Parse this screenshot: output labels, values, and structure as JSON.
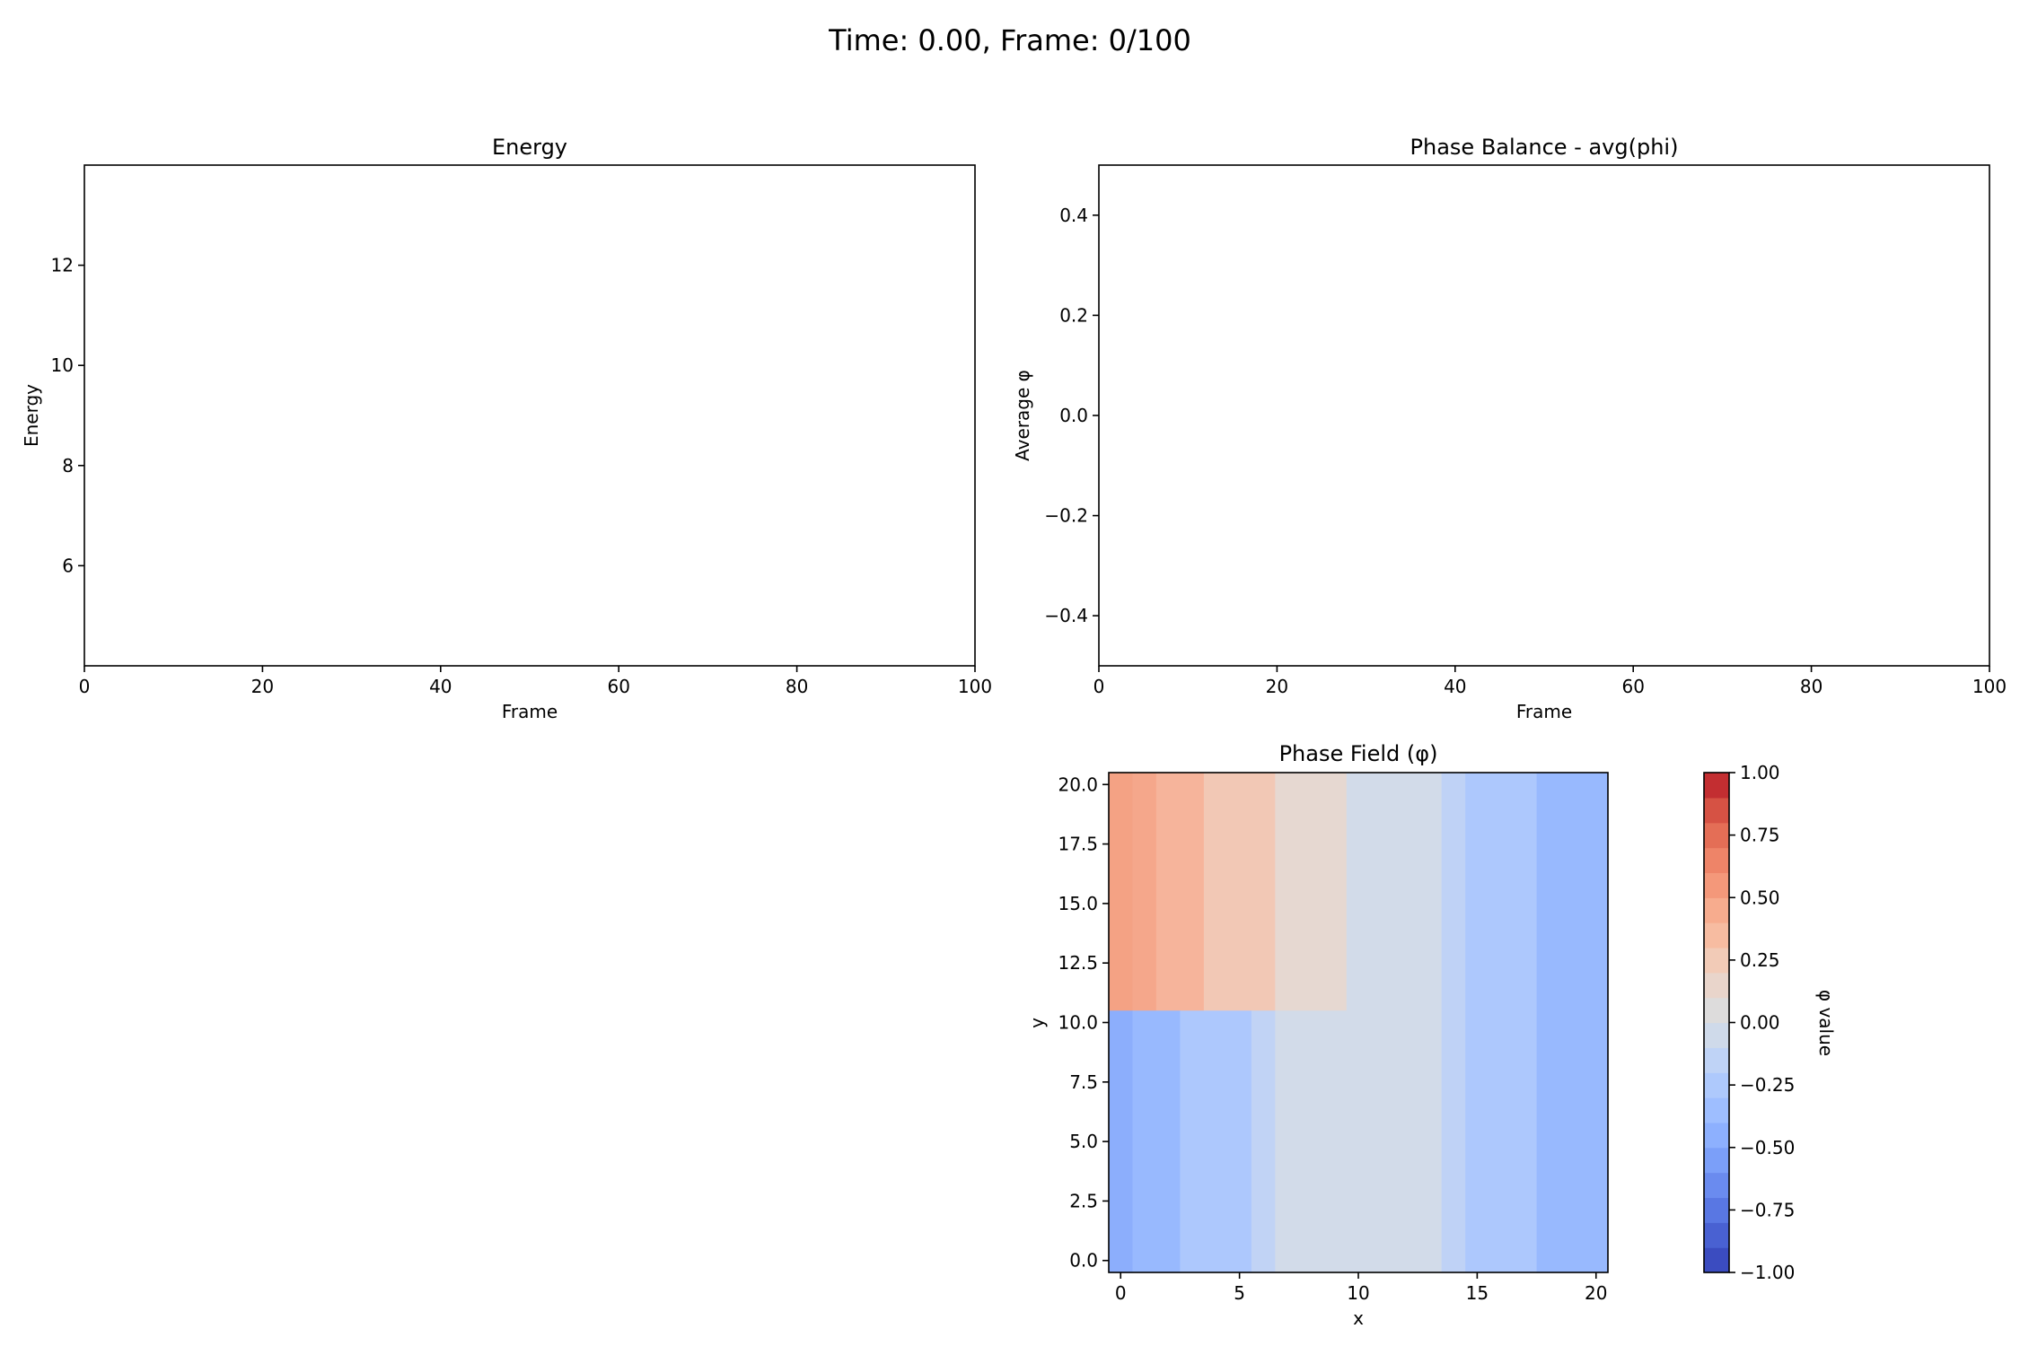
{
  "figure": {
    "suptitle": "Time: 0.00, Frame: 0/100"
  },
  "chart_data": [
    {
      "type": "line",
      "title": "Energy",
      "xlabel": "Frame",
      "ylabel": "Energy",
      "xlim": [
        0,
        100
      ],
      "ylim": [
        4.0,
        14.0
      ],
      "xticks": [
        0,
        20,
        40,
        60,
        80,
        100
      ],
      "xtick_labels": [
        "0",
        "20",
        "40",
        "60",
        "80",
        "100"
      ],
      "yticks": [
        6,
        8,
        10,
        12
      ],
      "ytick_labels": [
        "6",
        "8",
        "10",
        "12"
      ],
      "grid": false,
      "series": []
    },
    {
      "type": "line",
      "title": "Phase Balance - avg(phi)",
      "xlabel": "Frame",
      "ylabel": "Average φ",
      "xlim": [
        0,
        100
      ],
      "ylim": [
        -0.5,
        0.5
      ],
      "xticks": [
        0,
        20,
        40,
        60,
        80,
        100
      ],
      "xtick_labels": [
        "0",
        "20",
        "40",
        "60",
        "80",
        "100"
      ],
      "yticks": [
        -0.4,
        -0.2,
        0.0,
        0.2,
        0.4
      ],
      "ytick_labels": [
        "−0.4",
        "−0.2",
        "0.0",
        "0.2",
        "0.4"
      ],
      "grid": false,
      "series": []
    },
    {
      "type": "heatmap",
      "title": "Phase Field (φ)",
      "xlabel": "x",
      "ylabel": "y",
      "xlim": [
        -0.5,
        20.5
      ],
      "ylim": [
        -0.5,
        20.5
      ],
      "xticks": [
        0,
        5,
        10,
        15,
        20
      ],
      "xtick_labels": [
        "0",
        "5",
        "10",
        "15",
        "20"
      ],
      "yticks": [
        0.0,
        2.5,
        5.0,
        7.5,
        10.0,
        12.5,
        15.0,
        17.5,
        20.0
      ],
      "ytick_labels": [
        "0.0",
        "2.5",
        "5.0",
        "7.5",
        "10.0",
        "12.5",
        "15.0",
        "17.5",
        "20.0"
      ],
      "colormap": "coolwarm",
      "vmin": -1.0,
      "vmax": 1.0,
      "regions": [
        {
          "x": [
            -0.5,
            0.5
          ],
          "y": [
            10.5,
            20.5
          ],
          "value": 0.5,
          "color": "#f4a284"
        },
        {
          "x": [
            0.5,
            1.5
          ],
          "y": [
            10.5,
            20.5
          ],
          "value": 0.45,
          "color": "#f5a78b"
        },
        {
          "x": [
            1.5,
            3.5
          ],
          "y": [
            10.5,
            20.5
          ],
          "value": 0.4,
          "color": "#f6b49b"
        },
        {
          "x": [
            3.5,
            6.5
          ],
          "y": [
            10.5,
            20.5
          ],
          "value": 0.25,
          "color": "#f2c8b5"
        },
        {
          "x": [
            6.5,
            9.5
          ],
          "y": [
            10.5,
            20.5
          ],
          "value": 0.1,
          "color": "#e6d8d1"
        },
        {
          "x": [
            9.5,
            13.5
          ],
          "y": [
            10.5,
            20.5
          ],
          "value": -0.1,
          "color": "#d2dbe9"
        },
        {
          "x": [
            13.5,
            14.5
          ],
          "y": [
            10.5,
            20.5
          ],
          "value": -0.3,
          "color": "#bfd2f6"
        },
        {
          "x": [
            14.5,
            17.5
          ],
          "y": [
            10.5,
            20.5
          ],
          "value": -0.35,
          "color": "#adc8fd"
        },
        {
          "x": [
            17.5,
            20.5
          ],
          "y": [
            10.5,
            20.5
          ],
          "value": -0.45,
          "color": "#98b9fe"
        },
        {
          "x": [
            -0.5,
            0.5
          ],
          "y": [
            -0.5,
            10.5
          ],
          "value": -0.5,
          "color": "#8caefc"
        },
        {
          "x": [
            0.5,
            2.5
          ],
          "y": [
            -0.5,
            10.5
          ],
          "value": -0.45,
          "color": "#98b9fe"
        },
        {
          "x": [
            2.5,
            5.5
          ],
          "y": [
            -0.5,
            10.5
          ],
          "value": -0.35,
          "color": "#adc8fd"
        },
        {
          "x": [
            5.5,
            6.5
          ],
          "y": [
            -0.5,
            10.5
          ],
          "value": -0.25,
          "color": "#c1d3f5"
        },
        {
          "x": [
            6.5,
            13.5
          ],
          "y": [
            -0.5,
            10.5
          ],
          "value": -0.1,
          "color": "#d2dbe9"
        },
        {
          "x": [
            13.5,
            14.5
          ],
          "y": [
            -0.5,
            10.5
          ],
          "value": -0.3,
          "color": "#bfd2f6"
        },
        {
          "x": [
            14.5,
            17.5
          ],
          "y": [
            -0.5,
            10.5
          ],
          "value": -0.35,
          "color": "#adc8fd"
        },
        {
          "x": [
            17.5,
            20.5
          ],
          "y": [
            -0.5,
            10.5
          ],
          "value": -0.45,
          "color": "#98b9fe"
        }
      ],
      "colorbar": {
        "label": "φ value",
        "ticks": [
          -1.0,
          -0.75,
          -0.5,
          -0.25,
          0.0,
          0.25,
          0.5,
          0.75,
          1.0
        ],
        "tick_labels": [
          "−1.00",
          "−0.75",
          "−0.50",
          "−0.25",
          "0.00",
          "0.25",
          "0.50",
          "0.75",
          "1.00"
        ],
        "levels": 20,
        "colors": [
          "#3b4cc0",
          "#4961d2",
          "#5977e3",
          "#6a8bef",
          "#7b9ff9",
          "#8db0fe",
          "#9ebeff",
          "#aec9fc",
          "#bfd3f6",
          "#cfdaea",
          "#dddcdc",
          "#e9d5cb",
          "#f2cbb7",
          "#f7bca1",
          "#f7ac8e",
          "#f4987a",
          "#ee8468",
          "#e46e56",
          "#d65244",
          "#c32e31"
        ]
      }
    }
  ]
}
